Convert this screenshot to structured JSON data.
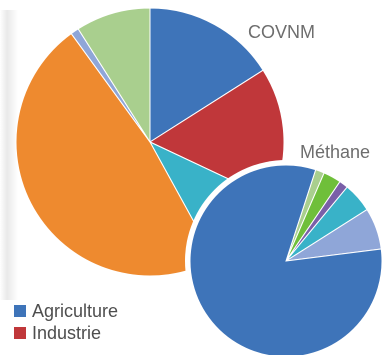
{
  "chart_data": [
    {
      "type": "pie",
      "title": "COVNM",
      "slices": [
        {
          "name": "Agriculture",
          "value": 16.0,
          "color": "#3e74b9"
        },
        {
          "name": "Industrie",
          "value": 16.0,
          "color": "#c0373a"
        },
        {
          "name": "",
          "value": 10.0,
          "color": "#39b2c8"
        },
        {
          "name": "",
          "value": 48.0,
          "color": "#ee8a2f"
        },
        {
          "name": "",
          "value": 1.0,
          "color": "#8fa6d8"
        },
        {
          "name": "",
          "value": 9.0,
          "color": "#a9cf8e"
        }
      ]
    },
    {
      "type": "pie",
      "title": "Méthane",
      "slices": [
        {
          "name": "Agriculture",
          "value": 1.5,
          "color": "#a9cf8e"
        },
        {
          "name": "",
          "value": 3.0,
          "color": "#6fbf3a"
        },
        {
          "name": "",
          "value": 1.5,
          "color": "#7a5fa8"
        },
        {
          "name": "",
          "value": 5.0,
          "color": "#39b2c8"
        },
        {
          "name": "",
          "value": 7.0,
          "color": "#8fa6d8"
        },
        {
          "name": "",
          "value": 82.0,
          "color": "#3e74b9"
        }
      ]
    }
  ],
  "legend": [
    {
      "label": "Agriculture",
      "color": "#3e74b9"
    },
    {
      "label": "Industrie",
      "color": "#c0373a"
    }
  ]
}
